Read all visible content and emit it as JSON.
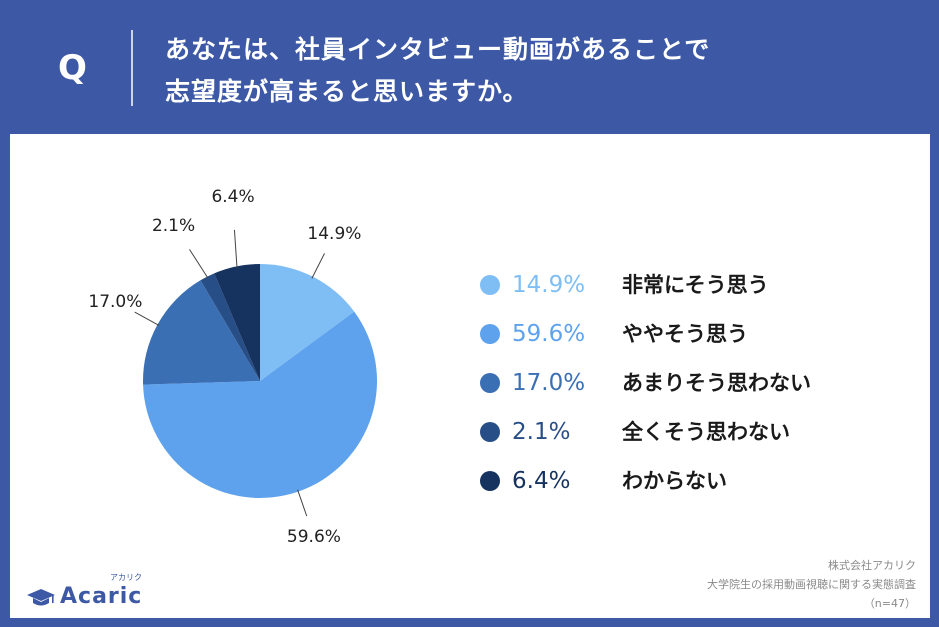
{
  "header": {
    "q_mark": "Q",
    "question_line1": "あなたは、社員インタビュー動画があることで",
    "question_line2": "志望度が高まると思いますか。"
  },
  "chart_data": {
    "type": "pie",
    "title": "",
    "sample_size": "（n=47）",
    "slices": [
      {
        "label": "非常にそう思う",
        "value": 14.9,
        "pct_text": "14.9%",
        "color": "#7fbef5"
      },
      {
        "label": "ややそう思う",
        "value": 59.6,
        "pct_text": "59.6%",
        "color": "#5ea2ee"
      },
      {
        "label": "あまりそう思わない",
        "value": 17.0,
        "pct_text": "17.0%",
        "color": "#3b6fb4"
      },
      {
        "label": "全くそう思わない",
        "value": 2.1,
        "pct_text": "2.1%",
        "color": "#274e86"
      },
      {
        "label": "わからない",
        "value": 6.4,
        "pct_text": "6.4%",
        "color": "#16325f"
      }
    ],
    "start_angle_deg": 0,
    "direction": "clockwise",
    "legend_position": "right"
  },
  "logo": {
    "text": "Acaric",
    "kana": "アカリク",
    "icon": "graduation-cap-icon"
  },
  "source": {
    "line1": "株式会社アカリク",
    "line2": "大学院生の採用動画視聴に関する実態調査",
    "line3": "（n=47）"
  }
}
